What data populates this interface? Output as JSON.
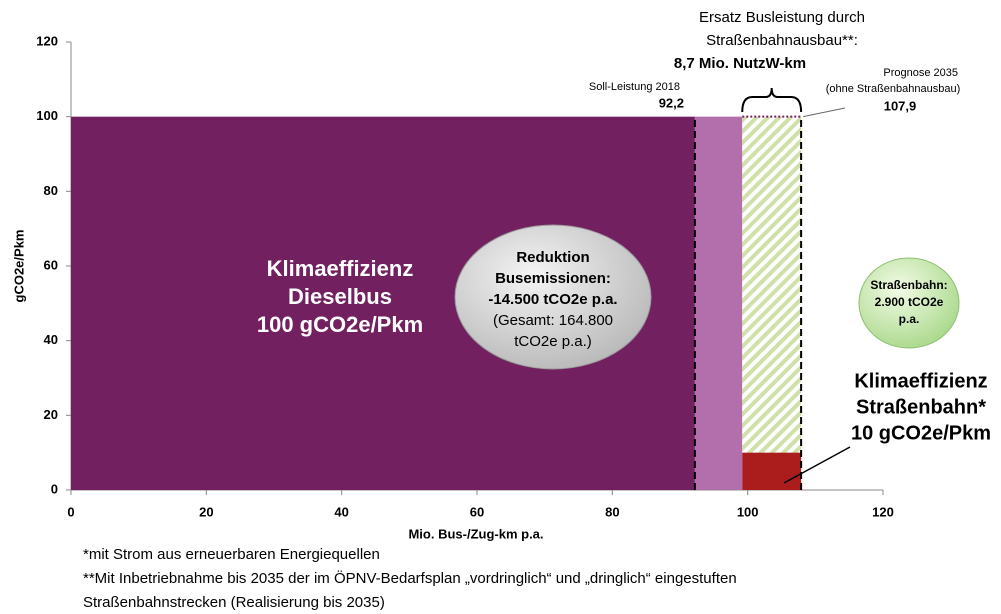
{
  "chart_data": {
    "type": "bar",
    "ylabel": "gCO2e/Pkm",
    "xlabel": "Mio. Bus-/Zug-km p.a.",
    "xlim": [
      0,
      120
    ],
    "xticks": [
      0,
      20,
      40,
      60,
      80,
      100,
      120
    ],
    "ylim": [
      0,
      120
    ],
    "yticks": [
      0,
      20,
      40,
      60,
      80,
      100,
      120
    ],
    "segments": [
      {
        "x0": 0,
        "x1": 92.2,
        "y0": 0,
        "y1": 100,
        "color": "#722060"
      },
      {
        "x0": 92.2,
        "x1": 99.2,
        "y0": 0,
        "y1": 100,
        "color": "#b26fab"
      },
      {
        "x0": 99.2,
        "x1": 107.9,
        "y0": 10,
        "y1": 100,
        "color": "hatch"
      },
      {
        "x0": 99.2,
        "x1": 107.9,
        "y0": 0,
        "y1": 10,
        "color": "#ab1d1d"
      }
    ],
    "markers": [
      {
        "label": [
          "Soll-Leistung 2018"
        ],
        "value": 92.2,
        "value_label": "92,2"
      },
      {
        "label": [
          "Prognose 2035",
          "(ohne Straßenbahnausbau)"
        ],
        "value": 107.9,
        "value_label": "107,9"
      }
    ],
    "bracket": {
      "label": [
        "Ersatz Busleistung durch",
        "Straßenbahnausbau**:"
      ],
      "value": 8.7,
      "value_label": "8,7 Mio. NutzW-km"
    },
    "annotations": {
      "dieselbus": [
        "Klimaeffizienz",
        "Dieselbus",
        "100 gCO2e/Pkm"
      ],
      "reduction_bold": [
        "Reduktion",
        "Busemissionen:",
        "-14.500 tCO2e p.a."
      ],
      "reduction_note": [
        "(Gesamt: 164.800",
        "tCO2e p.a.)"
      ],
      "tram_emissions": [
        "Straßenbahn:",
        "2.900 tCO2e",
        "p.a."
      ],
      "tram_efficiency": [
        "Klimaeffizienz",
        "Straßenbahn*",
        "10 gCO2e/Pkm"
      ]
    },
    "footnotes": [
      "*mit Strom aus erneuerbaren Energiequellen",
      "**Mit Inbetriebnahme bis 2035 der im ÖPNV-Bedarfsplan „vordringlich“ und „dringlich“ eingestuften",
      "Straßenbahnstrecken (Realisierung bis 2035)"
    ]
  }
}
